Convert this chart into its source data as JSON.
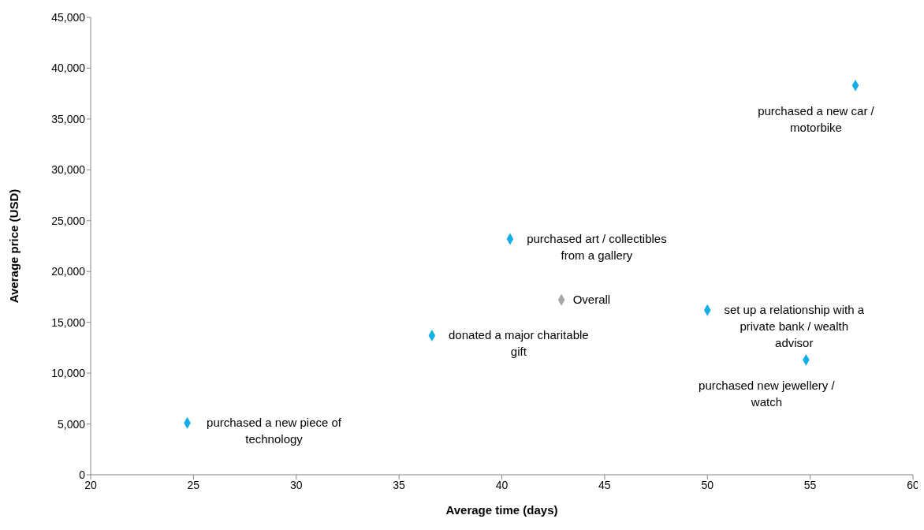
{
  "chart_data": {
    "type": "scatter",
    "xlabel": "Average time (days)",
    "ylabel": "Average price (USD)",
    "xlim": [
      20,
      60
    ],
    "xticks": [
      20,
      25,
      30,
      35,
      40,
      45,
      50,
      55,
      60
    ],
    "ylim": [
      0,
      45000
    ],
    "yticks": [
      0,
      {
        "value": 5000,
        "label": "5,000"
      },
      {
        "value": 10000,
        "label": "10,000"
      },
      {
        "value": 15000,
        "label": "15,000"
      },
      {
        "value": 20000,
        "label": "20,000"
      },
      {
        "value": 25000,
        "label": "25,000"
      },
      {
        "value": 30000,
        "label": "30,000"
      },
      {
        "value": 35000,
        "label": "35,000"
      },
      {
        "value": 40000,
        "label": "40,000"
      },
      {
        "value": 45000,
        "label": "45,000"
      }
    ],
    "grid": false,
    "legend": false,
    "marker": "diamond",
    "series": [
      {
        "color": "#12aee8",
        "x": [
          24.7,
          36.6,
          40.4,
          50.0,
          54.8,
          57.2
        ],
        "values": [
          5100,
          13700,
          23200,
          16200,
          11300,
          38300
        ]
      },
      {
        "name": "Overall",
        "color": "#a6a6a6",
        "x": [
          42.9
        ],
        "values": [
          17200
        ]
      }
    ],
    "annotations": [
      {
        "text": "purchased a new piece of technology",
        "x": 24.7,
        "y": 5100
      },
      {
        "text": "donated a major charitable gift",
        "x": 36.6,
        "y": 13700
      },
      {
        "text": "purchased art / collectibles from a gallery",
        "x": 40.4,
        "y": 23200
      },
      {
        "text": "set up a relationship with a private bank / wealth advisor",
        "x": 50.0,
        "y": 16200
      },
      {
        "text": "purchased new jewellery / watch",
        "x": 54.8,
        "y": 11300
      },
      {
        "text": "purchased a new car / motorbike",
        "x": 57.2,
        "y": 38300
      }
    ]
  }
}
